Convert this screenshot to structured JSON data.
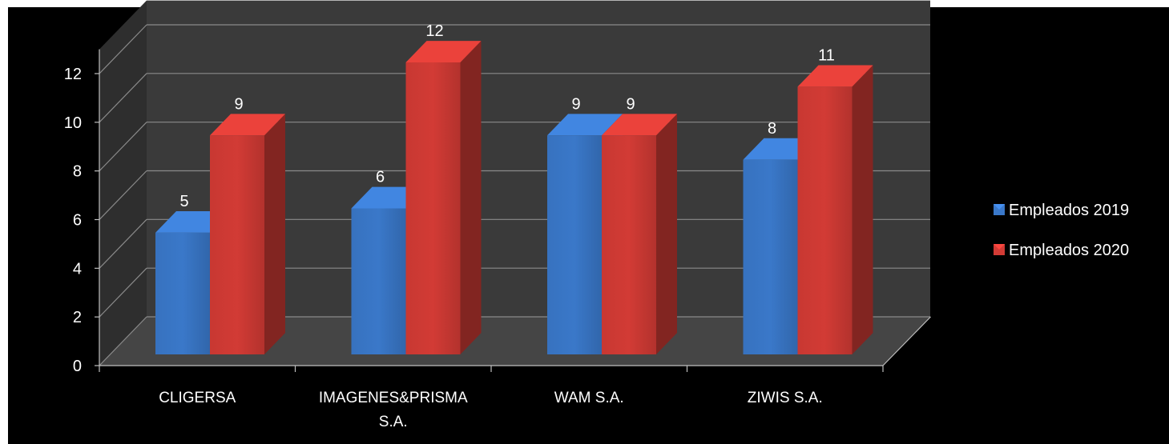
{
  "chart_data": {
    "type": "bar",
    "title": "",
    "xlabel": "",
    "ylabel": "",
    "categories": [
      [
        "CLIGERSA"
      ],
      [
        "IMAGENES&PRISMA",
        "S.A."
      ],
      [
        "WAM S.A."
      ],
      [
        "ZIWIS S.A."
      ]
    ],
    "series": [
      {
        "name": "Empleados 2019",
        "values": [
          5,
          6,
          9,
          8
        ],
        "color": "#3a78c9"
      },
      {
        "name": "Empleados 2020",
        "values": [
          9,
          12,
          9,
          11
        ],
        "color": "#d23b35"
      }
    ],
    "ylim": [
      0,
      12
    ],
    "yticks": [
      0,
      2,
      4,
      6,
      8,
      10,
      12
    ],
    "grid": true,
    "legend_position": "right",
    "background": "#000000",
    "wall_color": "#3a3a3a",
    "data_labels": true,
    "style": "3d-clustered-column"
  }
}
